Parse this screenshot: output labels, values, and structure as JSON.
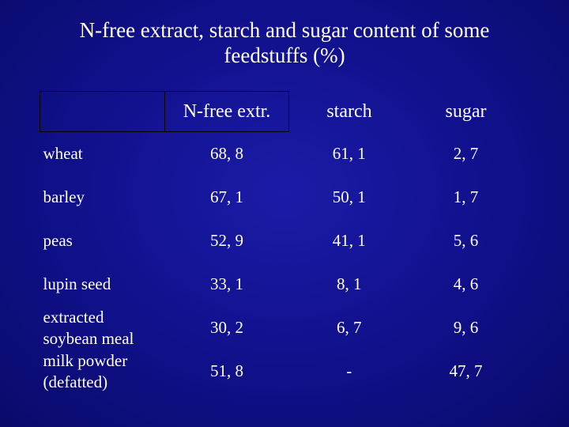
{
  "title": {
    "line1": "N-free extract, starch and sugar content of some",
    "line2": "feedstuffs (%)"
  },
  "table": {
    "headers": [
      "",
      "N-free extr.",
      "starch",
      "sugar"
    ],
    "rows": [
      {
        "name": "wheat",
        "values": [
          "68, 8",
          "61, 1",
          "2, 7"
        ]
      },
      {
        "name": "barley",
        "values": [
          "67, 1",
          "50, 1",
          "1, 7"
        ]
      },
      {
        "name": "peas",
        "values": [
          "52, 9",
          "41, 1",
          "5, 6"
        ]
      },
      {
        "name": "lupin seed",
        "values": [
          "33, 1",
          "8, 1",
          "4, 6"
        ]
      },
      {
        "name_lines": [
          "extracted",
          "soybean meal"
        ],
        "values": [
          "30, 2",
          "6, 7",
          "9, 6"
        ]
      },
      {
        "name_lines": [
          "milk powder",
          "(defatted)"
        ],
        "values": [
          "51, 8",
          "-",
          "47, 7"
        ]
      }
    ]
  }
}
